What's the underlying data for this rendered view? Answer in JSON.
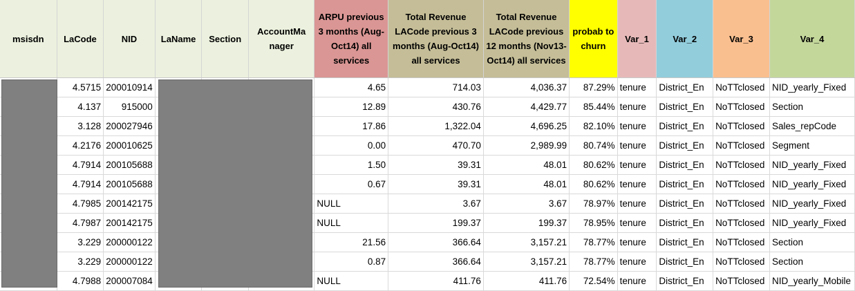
{
  "columns": [
    {
      "key": "msisdn",
      "label": "msisdn",
      "color": "#ebf1de"
    },
    {
      "key": "lacode",
      "label": "LaCode",
      "color": "#ebf1de"
    },
    {
      "key": "nid",
      "label": "NID",
      "color": "#ebf1de"
    },
    {
      "key": "laname",
      "label": "LaName",
      "color": "#ebf1de"
    },
    {
      "key": "section",
      "label": "Section",
      "color": "#ebf1de"
    },
    {
      "key": "account_manager",
      "label": "AccountMa nager",
      "color": "#ebf1de"
    },
    {
      "key": "arpu",
      "label": "ARPU previous 3 months (Aug-Oct14) all services",
      "color": "#da9694"
    },
    {
      "key": "rev3",
      "label": "Total Revenue LACode previous 3 months (Aug-Oct14) all services",
      "color": "#c4bd97"
    },
    {
      "key": "rev12",
      "label": "Total Revenue LACode previous 12 months (Nov13-Oct14) all services",
      "color": "#c4bd97"
    },
    {
      "key": "churn",
      "label": "probab to churn",
      "color": "#ffff00"
    },
    {
      "key": "var1",
      "label": "Var_1",
      "color": "#e6b9b8"
    },
    {
      "key": "var2",
      "label": "Var_2",
      "color": "#92cddc"
    },
    {
      "key": "var3",
      "label": "Var_3",
      "color": "#fabf8f"
    },
    {
      "key": "var4",
      "label": "Var_4",
      "color": "#c4d79b"
    }
  ],
  "rows": [
    {
      "msisdn": "",
      "lacode": "4.5715",
      "nid": "200010914",
      "laname": "",
      "section": "",
      "account_manager": "",
      "arpu": "4.65",
      "rev3": "714.03",
      "rev12": "4,036.37",
      "churn": "87.29%",
      "var1": "tenure",
      "var2": "District_En",
      "var3": "NoTTclosed",
      "var4": "NID_yearly_Fixed"
    },
    {
      "msisdn": "",
      "lacode": "4.137",
      "nid": "915000",
      "laname": "",
      "section": "",
      "account_manager": "",
      "arpu": "12.89",
      "rev3": "430.76",
      "rev12": "4,429.77",
      "churn": "85.44%",
      "var1": "tenure",
      "var2": "District_En",
      "var3": "NoTTclosed",
      "var4": "Section"
    },
    {
      "msisdn": "",
      "lacode": "3.128",
      "nid": "200027946",
      "laname": "",
      "section": "",
      "account_manager": "",
      "arpu": "17.86",
      "rev3": "1,322.04",
      "rev12": "4,696.25",
      "churn": "82.10%",
      "var1": "tenure",
      "var2": "District_En",
      "var3": "NoTTclosed",
      "var4": "Sales_repCode"
    },
    {
      "msisdn": "",
      "lacode": "4.2176",
      "nid": "200010625",
      "laname": "",
      "section": "",
      "account_manager": "",
      "arpu": "0.00",
      "rev3": "470.70",
      "rev12": "2,989.99",
      "churn": "80.74%",
      "var1": "tenure",
      "var2": "District_En",
      "var3": "NoTTclosed",
      "var4": "Segment"
    },
    {
      "msisdn": "",
      "lacode": "4.7914",
      "nid": "200105688",
      "laname": "",
      "section": "",
      "account_manager": "",
      "arpu": "1.50",
      "rev3": "39.31",
      "rev12": "48.01",
      "churn": "80.62%",
      "var1": "tenure",
      "var2": "District_En",
      "var3": "NoTTclosed",
      "var4": "NID_yearly_Fixed"
    },
    {
      "msisdn": "",
      "lacode": "4.7914",
      "nid": "200105688",
      "laname": "",
      "section": "",
      "account_manager": "",
      "arpu": "0.67",
      "rev3": "39.31",
      "rev12": "48.01",
      "churn": "80.62%",
      "var1": "tenure",
      "var2": "District_En",
      "var3": "NoTTclosed",
      "var4": "NID_yearly_Fixed"
    },
    {
      "msisdn": "",
      "lacode": "4.7985",
      "nid": "200142175",
      "laname": "",
      "section": "",
      "account_manager": "",
      "arpu": "NULL",
      "rev3": "3.67",
      "rev12": "3.67",
      "churn": "78.97%",
      "var1": "tenure",
      "var2": "District_En",
      "var3": "NoTTclosed",
      "var4": "NID_yearly_Fixed"
    },
    {
      "msisdn": "",
      "lacode": "4.7987",
      "nid": "200142175",
      "laname": "",
      "section": "",
      "account_manager": "",
      "arpu": "NULL",
      "rev3": "199.37",
      "rev12": "199.37",
      "churn": "78.95%",
      "var1": "tenure",
      "var2": "District_En",
      "var3": "NoTTclosed",
      "var4": "NID_yearly_Fixed"
    },
    {
      "msisdn": "",
      "lacode": "3.229",
      "nid": "200000122",
      "laname": "",
      "section": "",
      "account_manager": "",
      "arpu": "21.56",
      "rev3": "366.64",
      "rev12": "3,157.21",
      "churn": "78.77%",
      "var1": "tenure",
      "var2": "District_En",
      "var3": "NoTTclosed",
      "var4": "Section"
    },
    {
      "msisdn": "",
      "lacode": "3.229",
      "nid": "200000122",
      "laname": "",
      "section": "",
      "account_manager": "",
      "arpu": "0.87",
      "rev3": "366.64",
      "rev12": "3,157.21",
      "churn": "78.77%",
      "var1": "tenure",
      "var2": "District_En",
      "var3": "NoTTclosed",
      "var4": "Section"
    },
    {
      "msisdn": "",
      "lacode": "4.7988",
      "nid": "200007084",
      "laname": "",
      "section": "",
      "account_manager": "",
      "arpu": "NULL",
      "rev3": "411.76",
      "rev12": "411.76",
      "churn": "72.54%",
      "var1": "tenure",
      "var2": "District_En",
      "var3": "NoTTclosed",
      "var4": "NID_yearly_Mobile"
    }
  ]
}
